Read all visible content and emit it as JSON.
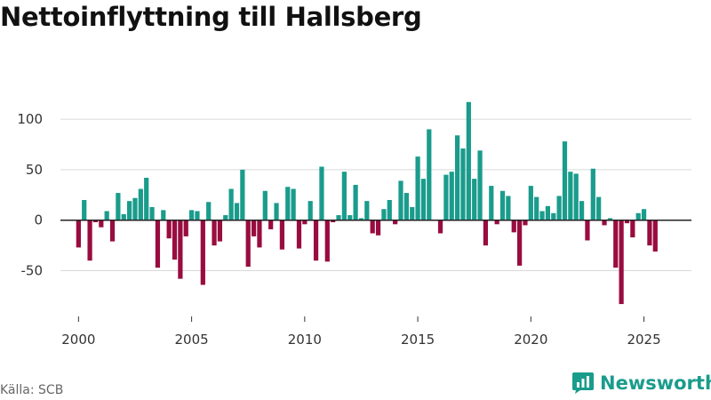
{
  "title": "Nettoinflyttning till Hallsberg",
  "source": "Källa: SCB",
  "brand": {
    "name": "Newsworthy",
    "color": "#1a9c8c"
  },
  "colors": {
    "positive": "#1a9c8c",
    "negative": "#990c3f",
    "gridline": "#d9d9d9",
    "zero_line": "#222222"
  },
  "chart_data": {
    "type": "bar",
    "title": "Nettoinflyttning till Hallsberg",
    "xlabel": "",
    "ylabel": "",
    "frequency": "quarterly",
    "x_start": 2000,
    "xlim": [
      1999.2,
      2027.1
    ],
    "ylim": [
      -90,
      130
    ],
    "yticks": [
      -50,
      0,
      50,
      100
    ],
    "xticks": [
      2000,
      2005,
      2010,
      2015,
      2020,
      2025
    ],
    "values": [
      -27,
      20,
      -40,
      -2,
      -7,
      9,
      -21,
      27,
      6,
      19,
      22,
      31,
      42,
      13,
      -47,
      10,
      -18,
      -39,
      -58,
      -16,
      10,
      9,
      -64,
      18,
      -25,
      -21,
      5,
      31,
      17,
      50,
      -46,
      -16,
      -27,
      29,
      -9,
      17,
      -29,
      33,
      31,
      -28,
      -4,
      19,
      -40,
      53,
      -41,
      -2,
      5,
      48,
      5,
      35,
      2,
      19,
      -13,
      -15,
      11,
      20,
      -4,
      39,
      27,
      13,
      63,
      41,
      90,
      0,
      -13,
      45,
      48,
      84,
      71,
      117,
      41,
      69,
      -25,
      34,
      -4,
      29,
      24,
      -12,
      -45,
      -5,
      34,
      23,
      9,
      14,
      7,
      24,
      78,
      48,
      46,
      19,
      -20,
      51,
      23,
      -5,
      2,
      -47,
      -83,
      -3,
      -17,
      7,
      11,
      -25,
      -31
    ]
  }
}
